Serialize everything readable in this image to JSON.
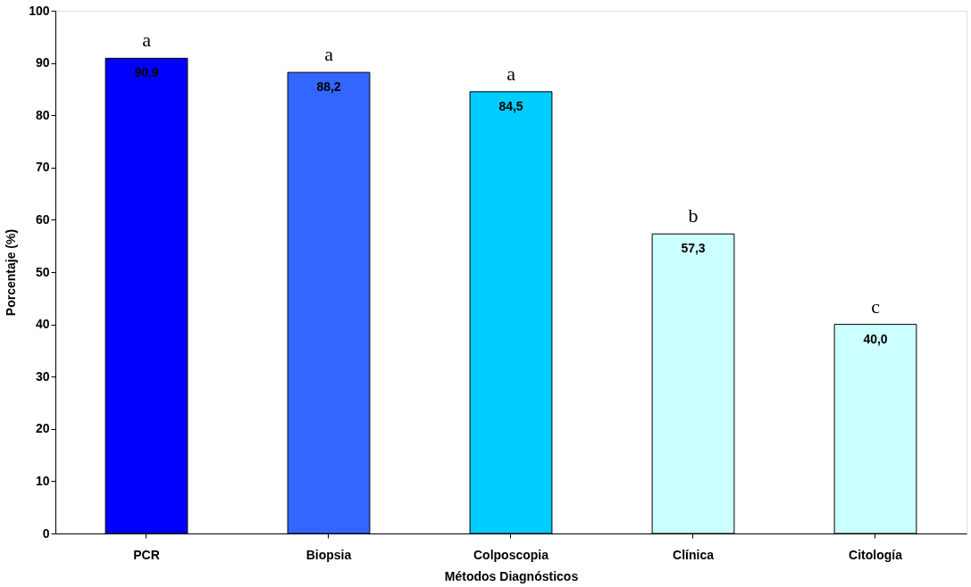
{
  "chart_data": {
    "type": "bar",
    "xlabel": "Métodos Diagnósticos",
    "ylabel": "Porcentaje (%)",
    "categories": [
      "PCR",
      "Biopsia",
      "Colposcopia",
      "Clínica",
      "Citología"
    ],
    "values": [
      90.9,
      88.2,
      84.5,
      57.3,
      40.0
    ],
    "value_labels": [
      "90,9",
      "88,2",
      "84,5",
      "57,3",
      "40,0"
    ],
    "colors": [
      "#0000ff",
      "#3366ff",
      "#00ccff",
      "#ccffff",
      "#ccffff"
    ],
    "ylim": [
      0,
      100
    ],
    "yticks": [
      0,
      10,
      20,
      30,
      40,
      50,
      60,
      70,
      80,
      90,
      100
    ],
    "grid": false,
    "legend": false,
    "annotations": [
      {
        "text": "a",
        "x": "PCR",
        "y": 90.9
      },
      {
        "text": "a",
        "x": "Biopsia",
        "y": 88.2
      },
      {
        "text": "a",
        "x": "Colposcopia",
        "y": 84.5
      },
      {
        "text": "b",
        "x": "Clínica",
        "y": 57.3
      },
      {
        "text": "c",
        "x": "Citología",
        "y": 40.0
      }
    ]
  }
}
